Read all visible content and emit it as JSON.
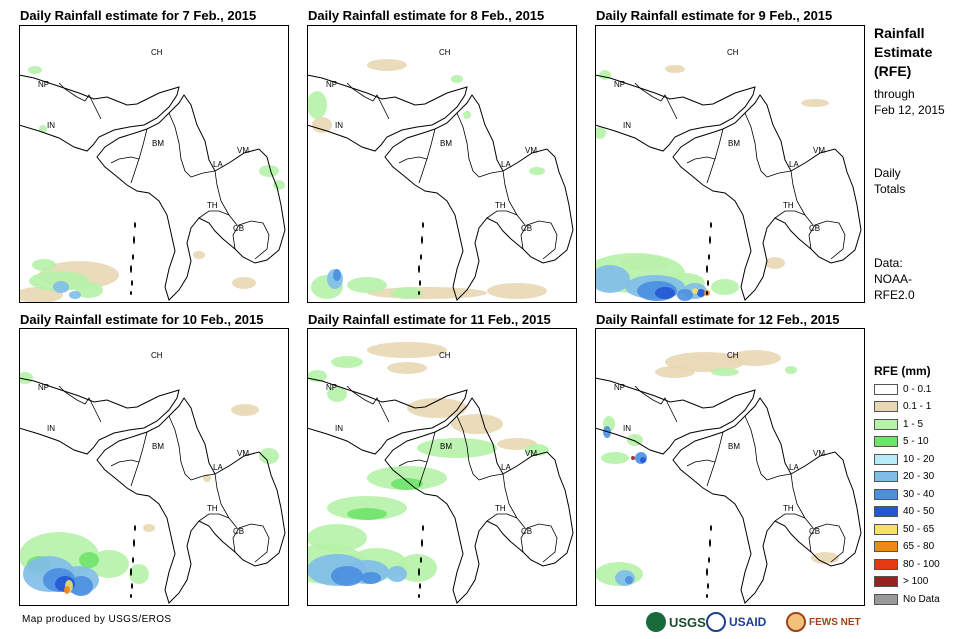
{
  "panels": [
    {
      "title": "Daily Rainfall estimate for 7 Feb., 2015"
    },
    {
      "title": "Daily Rainfall estimate for 8 Feb., 2015"
    },
    {
      "title": "Daily Rainfall estimate for 9 Feb., 2015"
    },
    {
      "title": "Daily Rainfall estimate for 10 Feb., 2015"
    },
    {
      "title": "Daily Rainfall estimate for 11 Feb., 2015"
    },
    {
      "title": "Daily Rainfall estimate for 12 Feb., 2015"
    }
  ],
  "country_labels": {
    "ch": "CH",
    "np": "NP",
    "in": "IN",
    "bm": "BM",
    "la": "LA",
    "vm": "VM",
    "th": "TH",
    "cb": "CB"
  },
  "sidebar": {
    "title_line1": "Rainfall",
    "title_line2": "Estimate",
    "title_line3": "(RFE)",
    "through": "through",
    "date": "Feb 12, 2015",
    "daily": "Daily",
    "totals": "Totals",
    "data_label": "Data:",
    "data_src1": "NOAA-",
    "data_src2": "RFE2.0"
  },
  "legend": {
    "title": "RFE (mm)",
    "items": [
      {
        "label": "0 - 0.1",
        "color": "#ffffff"
      },
      {
        "label": "0.1 - 1",
        "color": "#e8d7b4"
      },
      {
        "label": "1 - 5",
        "color": "#b6f2a9"
      },
      {
        "label": "5 - 10",
        "color": "#6fe36a"
      },
      {
        "label": "10 - 20",
        "color": "#b6ecf7"
      },
      {
        "label": "20 - 30",
        "color": "#7fbde9"
      },
      {
        "label": "30 - 40",
        "color": "#4a8fe0"
      },
      {
        "label": "40 - 50",
        "color": "#2257d4"
      },
      {
        "label": "50 - 65",
        "color": "#f4e06a"
      },
      {
        "label": "65 - 80",
        "color": "#f08a17"
      },
      {
        "label": "80 - 100",
        "color": "#e33a14"
      },
      {
        "label": "> 100",
        "color": "#9a2121"
      },
      {
        "label": "No Data",
        "color": "#9a9a9a"
      }
    ]
  },
  "credit": "Map produced by USGS/EROS",
  "logos": {
    "usgs": "USGS",
    "usaid": "USAID",
    "fews": "FEWS NET"
  }
}
